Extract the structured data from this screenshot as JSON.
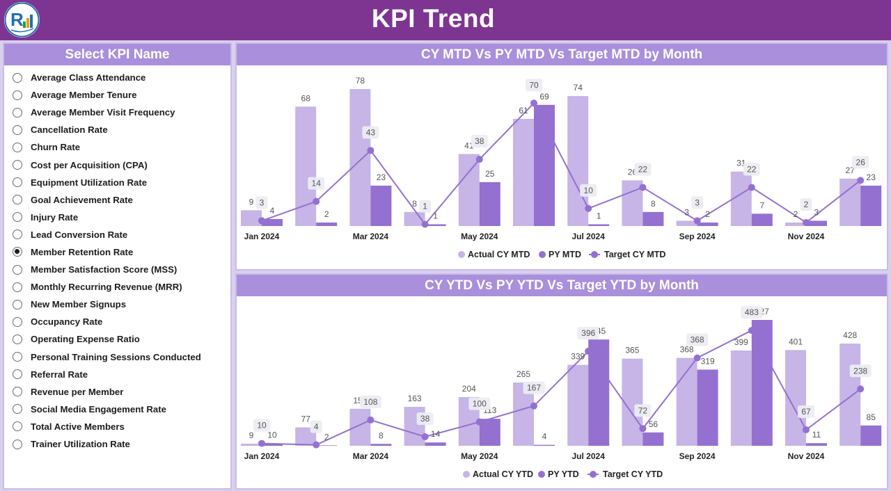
{
  "header": {
    "title": "KPI Trend"
  },
  "kpi_selector": {
    "title": "Select KPI Name",
    "selected": "Member Retention Rate",
    "items": [
      "Average Class Attendance",
      "Average Member Tenure",
      "Average Member Visit Frequency",
      "Cancellation Rate",
      "Churn Rate",
      "Cost per Acquisition (CPA)",
      "Equipment Utilization Rate",
      "Goal Achievement Rate",
      "Injury Rate",
      "Lead Conversion Rate",
      "Member Retention Rate",
      "Member Satisfaction Score (MSS)",
      "Monthly Recurring Revenue (MRR)",
      "New Member Signups",
      "Occupancy Rate",
      "Operating Expense Ratio",
      "Personal Training Sessions Conducted",
      "Referral Rate",
      "Revenue per Member",
      "Social Media Engagement Rate",
      "Total Active Members",
      "Trainer Utilization Rate"
    ]
  },
  "colors": {
    "header": "#7e3592",
    "panel_head": "#a98fdc",
    "actual": "#c6b5e6",
    "py": "#9470d0",
    "target": "#9470d0"
  },
  "chart_data": [
    {
      "type": "bar",
      "title": "CY MTD Vs PY MTD Vs Target MTD by Month",
      "categories": [
        "Jan 2024",
        "Feb 2024",
        "Mar 2024",
        "Apr 2024",
        "May 2024",
        "Jun 2024",
        "Jul 2024",
        "Aug 2024",
        "Sep 2024",
        "Oct 2024",
        "Nov 2024",
        "Dec 2024"
      ],
      "x_tick_labels": [
        "Jan 2024",
        "",
        "Mar 2024",
        "",
        "May 2024",
        "",
        "Jul 2024",
        "",
        "Sep 2024",
        "",
        "Nov 2024",
        ""
      ],
      "series": [
        {
          "name": "Actual CY MTD",
          "type": "bar",
          "values": [
            9,
            68,
            78,
            8,
            41,
            61,
            74,
            26,
            3,
            31,
            2,
            27
          ]
        },
        {
          "name": "PY MTD",
          "type": "bar",
          "values": [
            4,
            2,
            23,
            1,
            25,
            69,
            1,
            8,
            2,
            7,
            3,
            23
          ]
        },
        {
          "name": "Target CY MTD",
          "type": "line",
          "values": [
            3,
            14,
            43,
            1,
            38,
            70,
            10,
            22,
            3,
            22,
            2,
            26
          ]
        }
      ],
      "ylim": [
        0,
        80
      ],
      "legend": "bottom"
    },
    {
      "type": "bar",
      "title": "CY YTD Vs PY YTD Vs Target YTD by Month",
      "categories": [
        "Jan 2024",
        "Feb 2024",
        "Mar 2024",
        "Apr 2024",
        "May 2024",
        "Jun 2024",
        "Jul 2024",
        "Aug 2024",
        "Sep 2024",
        "Oct 2024",
        "Nov 2024",
        "Dec 2024"
      ],
      "x_tick_labels": [
        "Jan 2024",
        "",
        "Mar 2024",
        "",
        "May 2024",
        "",
        "Jul 2024",
        "",
        "Sep 2024",
        "",
        "Nov 2024",
        ""
      ],
      "series": [
        {
          "name": "Actual CY YTD",
          "type": "bar",
          "values": [
            9,
            77,
            155,
            163,
            204,
            265,
            339,
            365,
            368,
            399,
            401,
            428
          ]
        },
        {
          "name": "PY YTD",
          "type": "bar",
          "values": [
            10,
            2,
            8,
            14,
            113,
            4,
            445,
            56,
            319,
            527,
            11,
            85
          ]
        },
        {
          "name": "Target CY YTD",
          "type": "line",
          "values": [
            10,
            4,
            108,
            38,
            100,
            167,
            396,
            72,
            368,
            483,
            67,
            238
          ]
        }
      ],
      "ylim": [
        0,
        530
      ],
      "legend": "bottom"
    }
  ]
}
